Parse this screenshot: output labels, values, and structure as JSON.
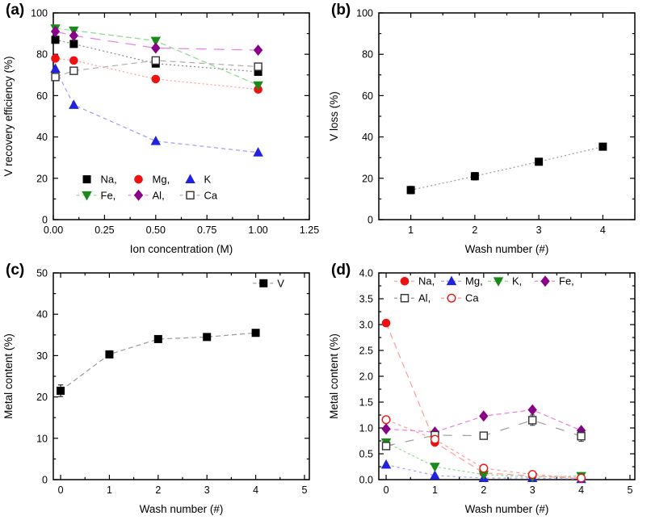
{
  "figure_background": "#ffffff",
  "chart_data": [
    {
      "panel_label": "(a)",
      "type": "line",
      "xlabel": "Ion concentration (M)",
      "ylabel": "V recovery efficiency (%)",
      "xlim": [
        0,
        1.25
      ],
      "ylim": [
        0,
        100
      ],
      "xticks": {
        "values": [
          0,
          0.25,
          0.5,
          0.75,
          1.0,
          1.25
        ],
        "labels": [
          "0.00",
          "0.25",
          "0.50",
          "0.75",
          "1.00",
          "1.25"
        ],
        "minor": [
          0.125,
          0.375,
          0.625,
          0.875,
          1.125
        ]
      },
      "yticks": {
        "values": [
          0,
          20,
          40,
          60,
          80,
          100
        ],
        "labels": [
          "0",
          "20",
          "40",
          "60",
          "80",
          "100"
        ],
        "minor": [
          10,
          30,
          50,
          70,
          90
        ]
      },
      "x": [
        0.01,
        0.1,
        0.5,
        1.0
      ],
      "series": [
        {
          "name": "Na",
          "label": "Na,",
          "marker": "square",
          "color": "#000000",
          "line": "#888888",
          "dash": "2 3",
          "legend_line": false,
          "y": [
            87,
            85,
            75.5,
            71.5
          ]
        },
        {
          "name": "Mg",
          "label": "Mg,",
          "marker": "circle",
          "color": "#ee1111",
          "line": "#ff9a9a",
          "dash": "2 3",
          "legend_line": false,
          "y": [
            78,
            77,
            68,
            63
          ]
        },
        {
          "name": "K",
          "label": "K",
          "marker": "triangle-up",
          "color": "#2222dd",
          "line": "#9a9aff",
          "dash": "5 4",
          "legend_line": false,
          "y": [
            73,
            55.5,
            38,
            32.5
          ]
        },
        {
          "name": "Fe",
          "label": "Fe,",
          "marker": "triangle-down",
          "color": "#1a8a1a",
          "line": "#90d890",
          "dash": "7 4",
          "legend_line": true,
          "y": [
            92.5,
            91.5,
            86.5,
            65
          ]
        },
        {
          "name": "Al",
          "label": "Al,",
          "marker": "diamond",
          "color": "#8b008b",
          "line": "#e87ee8",
          "dash": "13 9",
          "legend_line": true,
          "y": [
            91,
            89,
            83,
            82
          ]
        },
        {
          "name": "Ca",
          "label": "Ca",
          "marker": "square-open",
          "color": "#333333",
          "line": "#aaaaaa",
          "dash": "7 5",
          "legend_line": true,
          "y": [
            69,
            72,
            77,
            74
          ]
        }
      ],
      "legend": {
        "fx": 0.09,
        "fy": 0.805,
        "row_gap": 0.077,
        "item_w": 64,
        "rows": [
          [
            0,
            1,
            2
          ],
          [
            3,
            4,
            5
          ]
        ]
      }
    },
    {
      "panel_label": "(b)",
      "type": "line",
      "xlabel": "Wash number (#)",
      "ylabel": "V loss (%)",
      "xlim": [
        0.5,
        4.5
      ],
      "ylim": [
        0,
        100
      ],
      "xticks": {
        "values": [
          1,
          2,
          3,
          4
        ],
        "labels": [
          "1",
          "2",
          "3",
          "4"
        ],
        "minor": [
          1.5,
          2.5,
          3.5
        ]
      },
      "yticks": {
        "values": [
          0,
          20,
          40,
          60,
          80,
          100
        ],
        "labels": [
          "0",
          "20",
          "40",
          "60",
          "80",
          "100"
        ],
        "minor": [
          10,
          30,
          50,
          70,
          90
        ]
      },
      "x": [
        1,
        2,
        3,
        4
      ],
      "series": [
        {
          "name": "V-loss",
          "label": "V loss",
          "marker": "square",
          "color": "#000000",
          "line": "#999999",
          "dash": "2 3",
          "legend_line": true,
          "y": [
            14.3,
            21,
            28,
            35.3
          ],
          "err": [
            1.8,
            1.8,
            1.5,
            1.5
          ]
        }
      ],
      "legend": null
    },
    {
      "panel_label": "(c)",
      "type": "line",
      "xlabel": "Wash number (#)",
      "ylabel": "Metal content (%)",
      "xlim": [
        -0.15,
        5.1
      ],
      "ylim": [
        0,
        50
      ],
      "xticks": {
        "values": [
          0,
          1,
          2,
          3,
          4,
          5
        ],
        "labels": [
          "0",
          "1",
          "2",
          "3",
          "4",
          "5"
        ],
        "minor": [
          0.5,
          1.5,
          2.5,
          3.5,
          4.5
        ]
      },
      "yticks": {
        "values": [
          0,
          10,
          20,
          30,
          40,
          50
        ],
        "labels": [
          "0",
          "10",
          "20",
          "30",
          "40",
          "50"
        ],
        "minor": [
          5,
          15,
          25,
          35,
          45
        ]
      },
      "x": [
        0,
        1,
        2,
        3,
        4
      ],
      "series": [
        {
          "name": "V",
          "label": "V",
          "marker": "square",
          "color": "#000000",
          "line": "#999999",
          "dash": "6 4",
          "legend_line": true,
          "y": [
            21.5,
            30.3,
            34,
            34.5,
            35.5
          ],
          "err": [
            1.4,
            0.7,
            0.6,
            0.6,
            0.6
          ]
        }
      ],
      "legend": {
        "fx": 0.78,
        "fy": 0.05,
        "row_gap": 0.08,
        "item_w": 44,
        "rows": [
          [
            0
          ]
        ]
      }
    },
    {
      "panel_label": "(d)",
      "type": "line",
      "xlabel": "Wash number (#)",
      "ylabel": "Metal content (%)",
      "xlim": [
        -0.15,
        5.1
      ],
      "ylim": [
        0,
        4
      ],
      "xticks": {
        "values": [
          0,
          1,
          2,
          3,
          4,
          5
        ],
        "labels": [
          "0",
          "1",
          "2",
          "3",
          "4",
          "5"
        ],
        "minor": [
          0.5,
          1.5,
          2.5,
          3.5,
          4.5
        ]
      },
      "yticks": {
        "values": [
          0,
          0.5,
          1.0,
          1.5,
          2.0,
          2.5,
          3.0,
          3.5,
          4.0
        ],
        "labels": [
          "0.0",
          "0.5",
          "1.0",
          "1.5",
          "2.0",
          "2.5",
          "3.0",
          "3.5",
          "4.0"
        ],
        "minor": [
          0.25,
          0.75,
          1.25,
          1.75,
          2.25,
          2.75,
          3.25,
          3.75
        ]
      },
      "x": [
        0,
        1,
        2,
        3,
        4
      ],
      "series": [
        {
          "name": "Na",
          "label": "Na,",
          "marker": "circle",
          "color": "#ee1111",
          "line": "#ff9a9a",
          "dash": "8 5",
          "legend_line": true,
          "y": [
            3.03,
            0.72,
            0.13,
            0.07,
            0.02
          ]
        },
        {
          "name": "Mg",
          "label": "Mg,",
          "marker": "triangle-up",
          "color": "#2222dd",
          "line": "#9a9aff",
          "dash": "3 4",
          "legend_line": true,
          "y": [
            0.29,
            0.08,
            0.03,
            0.03,
            0.01
          ]
        },
        {
          "name": "K",
          "label": "K,",
          "marker": "triangle-down",
          "color": "#1a8a1a",
          "line": "#90d890",
          "dash": "3 3",
          "legend_line": true,
          "y": [
            0.72,
            0.25,
            0.1,
            0.05,
            0.07
          ]
        },
        {
          "name": "Fe",
          "label": "Fe,",
          "marker": "diamond",
          "color": "#8b008b",
          "line": "#e87ee8",
          "dash": "6 4",
          "legend_line": true,
          "y": [
            0.98,
            0.92,
            1.23,
            1.35,
            0.95
          ]
        },
        {
          "name": "Al",
          "label": "Al,",
          "marker": "square-open",
          "color": "#333333",
          "line": "#999999",
          "dash": "11 13",
          "legend_line": true,
          "y": [
            0.65,
            0.86,
            0.85,
            1.15,
            0.84
          ],
          "err": [
            0,
            0.07,
            0,
            0.1,
            0.1
          ]
        },
        {
          "name": "Ca",
          "label": "Ca",
          "marker": "circle-open",
          "color": "#ee1111",
          "line": "#ff9a9a",
          "dash": "4 4",
          "legend_line": true,
          "y": [
            1.16,
            0.78,
            0.22,
            0.1,
            0.03
          ]
        }
      ],
      "legend": {
        "fx": 0.06,
        "fy": 0.04,
        "row_gap": 0.082,
        "item_w": 58,
        "rows": [
          [
            0,
            1,
            2,
            3
          ],
          [
            4,
            5
          ]
        ]
      }
    }
  ]
}
